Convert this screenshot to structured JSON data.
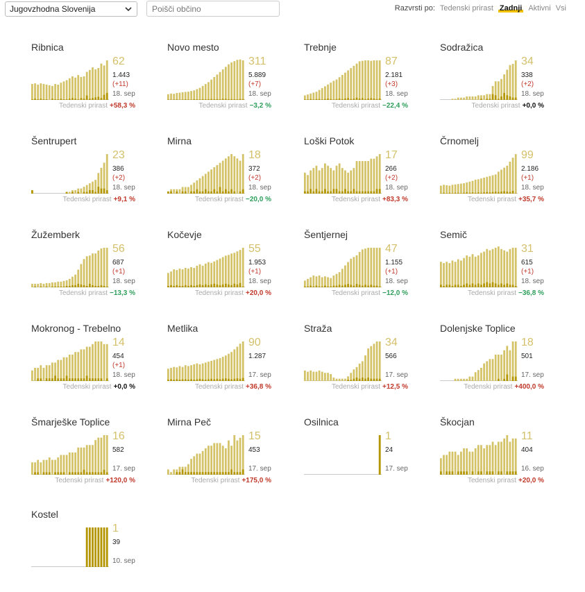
{
  "colors": {
    "bar_light": "#d4c267",
    "bar_dark": "#b39600",
    "baseline": "#c9c9c9",
    "total_text": "#d4c06a",
    "delta_text": "#c0392b",
    "growth_pos": "#c0392b",
    "growth_neg": "#2e9e5b",
    "growth_zero": "#111111",
    "sort_active_underline": "#f2c200"
  },
  "toolbar": {
    "region_value": "Jugovzhodna Slovenija",
    "search_placeholder": "Poišči občino",
    "sort_label": "Razvrsti po:",
    "sort_options": [
      "Tedenski prirast",
      "Zadnji",
      "Aktivni",
      "Vsi"
    ],
    "sort_active": "Zadnji"
  },
  "growth_label": "Tedenski prirast",
  "chart_data": [
    {
      "type": "bar",
      "title": "Ribnica",
      "total": "62",
      "cumulative": "1.443",
      "delta": "(+11)",
      "date": "18. sep",
      "growth": "+58,3 %",
      "growth_sign": "pos",
      "ymax": 62,
      "values": [
        25,
        26,
        24,
        26,
        25,
        24,
        23,
        22,
        25,
        24,
        27,
        29,
        31,
        34,
        37,
        35,
        39,
        36,
        37,
        44,
        47,
        51,
        48,
        50,
        57,
        54,
        62
      ],
      "daily": [
        1,
        2,
        1,
        2,
        1,
        1,
        0,
        2,
        1,
        1,
        2,
        1,
        1,
        2,
        3,
        2,
        1,
        3,
        2,
        7,
        2,
        3,
        4,
        5,
        3,
        8,
        11
      ]
    },
    {
      "type": "bar",
      "title": "Novo mesto",
      "total": "311",
      "cumulative": "5.889",
      "delta": "(+7)",
      "date": "18. sep",
      "growth": "−3,2 %",
      "growth_sign": "neg",
      "ymax": 311,
      "values": [
        45,
        50,
        48,
        55,
        57,
        60,
        63,
        65,
        70,
        75,
        85,
        95,
        110,
        125,
        140,
        160,
        180,
        200,
        220,
        240,
        260,
        280,
        295,
        305,
        315,
        318,
        311
      ],
      "daily": [
        3,
        2,
        3,
        4,
        2,
        3,
        5,
        4,
        3,
        6,
        5,
        4,
        7,
        5,
        6,
        8,
        6,
        7,
        5,
        9,
        8,
        6,
        7,
        6,
        5,
        8,
        7
      ]
    },
    {
      "type": "bar",
      "title": "Trebnje",
      "total": "87",
      "cumulative": "2.181",
      "delta": "(+3)",
      "date": "18. sep",
      "growth": "−22,4 %",
      "growth_sign": "neg",
      "ymax": 87,
      "values": [
        10,
        12,
        14,
        16,
        18,
        22,
        26,
        30,
        34,
        38,
        42,
        45,
        50,
        55,
        60,
        65,
        70,
        75,
        80,
        85,
        86,
        87,
        87,
        86,
        87,
        87,
        87
      ],
      "daily": [
        1,
        1,
        2,
        1,
        2,
        2,
        1,
        2,
        3,
        2,
        1,
        2,
        3,
        2,
        3,
        4,
        2,
        3,
        5,
        3,
        4,
        2,
        3,
        4,
        3,
        2,
        3
      ]
    },
    {
      "type": "bar",
      "title": "Sodražica",
      "total": "34",
      "cumulative": "338",
      "delta": "(+2)",
      "date": "18. sep",
      "growth": "+0,0 %",
      "growth_sign": "zero",
      "ymax": 34,
      "values": [
        0,
        0,
        0,
        0,
        1,
        1,
        2,
        2,
        2,
        3,
        3,
        3,
        3,
        4,
        4,
        4,
        5,
        5,
        12,
        16,
        16,
        18,
        22,
        26,
        30,
        31,
        34
      ],
      "daily": [
        0,
        0,
        0,
        0,
        0,
        0,
        0,
        0,
        0,
        0,
        0,
        0,
        0,
        0,
        1,
        0,
        1,
        1,
        5,
        4,
        1,
        3,
        6,
        4,
        3,
        2,
        2
      ]
    },
    {
      "type": "bar",
      "title": "Šentrupert",
      "total": "23",
      "cumulative": "386",
      "delta": "(+2)",
      "date": "18. sep",
      "growth": "+9,1 %",
      "growth_sign": "pos",
      "ymax": 23,
      "values": [
        2,
        0,
        0,
        0,
        0,
        0,
        0,
        0,
        0,
        0,
        0,
        0,
        1,
        1,
        2,
        2,
        3,
        3,
        4,
        5,
        6,
        7,
        8,
        12,
        15,
        18,
        23
      ],
      "daily": [
        2,
        0,
        0,
        0,
        0,
        0,
        0,
        0,
        0,
        0,
        0,
        0,
        1,
        0,
        1,
        0,
        1,
        0,
        1,
        1,
        2,
        2,
        1,
        4,
        3,
        3,
        2
      ]
    },
    {
      "type": "bar",
      "title": "Mirna",
      "total": "18",
      "cumulative": "372",
      "delta": "(+2)",
      "date": "18. sep",
      "growth": "−20,0 %",
      "growth_sign": "neg",
      "ymax": 18,
      "values": [
        1,
        2,
        2,
        2,
        2,
        3,
        3,
        3,
        4,
        5,
        6,
        7,
        8,
        9,
        10,
        11,
        12,
        13,
        14,
        15,
        16,
        17,
        18,
        17,
        16,
        15,
        18
      ],
      "daily": [
        1,
        1,
        0,
        1,
        0,
        1,
        1,
        0,
        1,
        1,
        2,
        1,
        1,
        2,
        1,
        1,
        2,
        1,
        3,
        1,
        2,
        1,
        2,
        1,
        0,
        1,
        2
      ]
    },
    {
      "type": "bar",
      "title": "Loški Potok",
      "total": "17",
      "cumulative": "266",
      "delta": "(+2)",
      "date": "18. sep",
      "growth": "+83,3 %",
      "growth_sign": "pos",
      "ymax": 17,
      "values": [
        9,
        8,
        10,
        11,
        12,
        10,
        11,
        13,
        12,
        11,
        10,
        12,
        13,
        11,
        10,
        9,
        10,
        11,
        14,
        14,
        14,
        14,
        14,
        15,
        15,
        16,
        17
      ],
      "daily": [
        1,
        1,
        2,
        1,
        2,
        1,
        1,
        2,
        1,
        1,
        2,
        2,
        1,
        1,
        2,
        1,
        1,
        2,
        1,
        1,
        1,
        1,
        1,
        1,
        1,
        2,
        2
      ]
    },
    {
      "type": "bar",
      "title": "Črnomelj",
      "total": "99",
      "cumulative": "2.186",
      "delta": "(+1)",
      "date": "18. sep",
      "growth": "+35,7 %",
      "growth_sign": "pos",
      "ymax": 99,
      "values": [
        20,
        22,
        21,
        20,
        22,
        23,
        24,
        25,
        26,
        28,
        30,
        32,
        35,
        36,
        38,
        40,
        42,
        44,
        46,
        48,
        55,
        60,
        65,
        70,
        80,
        90,
        99
      ],
      "daily": [
        1,
        2,
        1,
        2,
        1,
        2,
        2,
        1,
        2,
        3,
        2,
        3,
        2,
        3,
        2,
        3,
        4,
        3,
        4,
        5,
        4,
        5,
        6,
        5,
        4,
        7,
        1
      ]
    },
    {
      "type": "bar",
      "title": "Žužemberk",
      "total": "56",
      "cumulative": "687",
      "delta": "(+1)",
      "date": "18. sep",
      "growth": "−13,3 %",
      "growth_sign": "neg",
      "ymax": 56,
      "values": [
        5,
        5,
        5,
        6,
        5,
        6,
        6,
        7,
        7,
        8,
        8,
        9,
        10,
        12,
        15,
        18,
        25,
        33,
        40,
        44,
        45,
        48,
        48,
        52,
        55,
        56,
        56
      ],
      "daily": [
        0,
        1,
        0,
        1,
        0,
        1,
        0,
        1,
        1,
        1,
        1,
        1,
        2,
        2,
        3,
        3,
        5,
        4,
        3,
        2,
        5,
        3,
        2,
        2,
        3,
        2,
        1
      ]
    },
    {
      "type": "bar",
      "title": "Kočevje",
      "total": "55",
      "cumulative": "1.953",
      "delta": "(+1)",
      "date": "18. sep",
      "growth": "+20,0 %",
      "growth_sign": "pos",
      "ymax": 55,
      "values": [
        20,
        22,
        25,
        24,
        26,
        25,
        27,
        26,
        28,
        27,
        30,
        32,
        30,
        33,
        35,
        34,
        36,
        38,
        40,
        42,
        44,
        45,
        47,
        48,
        50,
        52,
        55
      ],
      "daily": [
        2,
        3,
        2,
        3,
        2,
        2,
        3,
        2,
        3,
        2,
        3,
        4,
        3,
        4,
        3,
        4,
        5,
        4,
        3,
        4,
        5,
        4,
        3,
        5,
        4,
        6,
        1
      ]
    },
    {
      "type": "bar",
      "title": "Šentjernej",
      "total": "47",
      "cumulative": "1.155",
      "delta": "(+1)",
      "date": "18. sep",
      "growth": "−12,0 %",
      "growth_sign": "neg",
      "ymax": 47,
      "values": [
        8,
        10,
        12,
        14,
        13,
        14,
        12,
        13,
        12,
        11,
        14,
        16,
        18,
        22,
        26,
        30,
        34,
        36,
        38,
        42,
        45,
        46,
        47,
        47,
        47,
        47,
        47
      ],
      "daily": [
        1,
        1,
        2,
        1,
        2,
        1,
        1,
        2,
        1,
        1,
        2,
        2,
        3,
        2,
        3,
        4,
        3,
        2,
        4,
        3,
        2,
        3,
        2,
        3,
        2,
        2,
        1
      ]
    },
    {
      "type": "bar",
      "title": "Semič",
      "total": "31",
      "cumulative": "615",
      "delta": "(+1)",
      "date": "18. sep",
      "growth": "−36,8 %",
      "growth_sign": "neg",
      "ymax": 31,
      "values": [
        20,
        19,
        20,
        19,
        21,
        20,
        22,
        21,
        23,
        25,
        24,
        26,
        24,
        25,
        27,
        28,
        30,
        29,
        30,
        31,
        32,
        30,
        29,
        28,
        30,
        31,
        31
      ],
      "daily": [
        2,
        1,
        2,
        2,
        1,
        2,
        2,
        1,
        2,
        3,
        2,
        3,
        2,
        3,
        2,
        3,
        4,
        3,
        4,
        3,
        2,
        3,
        2,
        3,
        2,
        2,
        1
      ]
    },
    {
      "type": "bar",
      "title": "Mokronog - Trebelno",
      "total": "14",
      "cumulative": "454",
      "delta": "(+1)",
      "date": "18. sep",
      "growth": "+0,0 %",
      "growth_sign": "zero",
      "ymax": 15,
      "values": [
        4,
        5,
        5,
        6,
        5,
        6,
        6,
        7,
        7,
        8,
        8,
        9,
        9,
        10,
        10,
        11,
        11,
        12,
        12,
        13,
        13,
        14,
        15,
        15,
        15,
        14,
        14
      ],
      "daily": [
        0,
        0,
        1,
        1,
        0,
        1,
        1,
        1,
        2,
        1,
        1,
        1,
        2,
        1,
        1,
        1,
        1,
        1,
        1,
        2,
        1,
        1,
        1,
        1,
        1,
        0,
        1
      ]
    },
    {
      "type": "bar",
      "title": "Metlika",
      "total": "90",
      "cumulative": "1.287",
      "delta": "",
      "date": "17. sep",
      "growth": "+36,8 %",
      "growth_sign": "pos",
      "ymax": 90,
      "values": [
        28,
        30,
        32,
        31,
        34,
        32,
        36,
        34,
        36,
        38,
        40,
        38,
        40,
        42,
        44,
        46,
        48,
        50,
        52,
        55,
        58,
        62,
        66,
        72,
        78,
        85,
        90
      ],
      "daily": [
        3,
        4,
        3,
        4,
        3,
        4,
        4,
        3,
        4,
        3,
        4,
        5,
        4,
        3,
        4,
        5,
        4,
        5,
        4,
        5,
        6,
        5,
        4,
        5,
        6,
        5,
        7
      ]
    },
    {
      "type": "bar",
      "title": "Straža",
      "total": "34",
      "cumulative": "566",
      "delta": "",
      "date": "17. sep",
      "growth": "+12,5 %",
      "growth_sign": "pos",
      "ymax": 34,
      "values": [
        9,
        8,
        9,
        8,
        8,
        9,
        8,
        7,
        7,
        6,
        3,
        2,
        2,
        2,
        2,
        4,
        7,
        10,
        12,
        15,
        17,
        22,
        28,
        30,
        32,
        34,
        34
      ],
      "daily": [
        0,
        0,
        0,
        0,
        0,
        0,
        0,
        0,
        0,
        0,
        0,
        0,
        0,
        0,
        0,
        1,
        1,
        2,
        3,
        2,
        3,
        2,
        3,
        2,
        2,
        2,
        2
      ]
    },
    {
      "type": "bar",
      "title": "Dolenjske Toplice",
      "total": "18",
      "cumulative": "501",
      "delta": "",
      "date": "17. sep",
      "growth": "+400,0 %",
      "growth_sign": "pos",
      "ymax": 18,
      "values": [
        0,
        0,
        0,
        0,
        0,
        1,
        1,
        1,
        1,
        1,
        2,
        2,
        4,
        5,
        6,
        8,
        9,
        10,
        10,
        12,
        12,
        12,
        14,
        16,
        14,
        18,
        18
      ],
      "daily": [
        0,
        0,
        0,
        0,
        0,
        0,
        0,
        0,
        0,
        0,
        0,
        0,
        0,
        0,
        0,
        0,
        0,
        0,
        0,
        0,
        1,
        0,
        1,
        3,
        0,
        2,
        2
      ]
    },
    {
      "type": "bar",
      "title": "Šmarješke Toplice",
      "total": "16",
      "cumulative": "582",
      "delta": "",
      "date": "17. sep",
      "growth": "+120,0 %",
      "growth_sign": "pos",
      "ymax": 16,
      "values": [
        5,
        5,
        6,
        5,
        6,
        6,
        7,
        6,
        6,
        7,
        8,
        8,
        8,
        9,
        9,
        9,
        11,
        11,
        11,
        12,
        12,
        12,
        14,
        15,
        15,
        16,
        16
      ],
      "daily": [
        0,
        1,
        1,
        0,
        1,
        1,
        1,
        0,
        1,
        1,
        1,
        1,
        0,
        1,
        1,
        1,
        1,
        1,
        2,
        1,
        1,
        1,
        1,
        1,
        1,
        2,
        1
      ]
    },
    {
      "type": "bar",
      "title": "Mirna Peč",
      "total": "15",
      "cumulative": "453",
      "delta": "",
      "date": "17. sep",
      "growth": "+175,0 %",
      "growth_sign": "pos",
      "ymax": 15,
      "values": [
        2,
        1,
        2,
        2,
        3,
        3,
        3,
        4,
        6,
        7,
        8,
        8,
        9,
        10,
        11,
        11,
        12,
        12,
        12,
        11,
        10,
        13,
        11,
        15,
        13,
        14,
        15
      ],
      "daily": [
        0,
        0,
        0,
        1,
        1,
        2,
        1,
        1,
        1,
        1,
        1,
        1,
        1,
        1,
        1,
        1,
        1,
        1,
        1,
        1,
        1,
        1,
        2,
        1,
        1,
        1,
        2
      ]
    },
    {
      "type": "bar",
      "title": "Osilnica",
      "total": "1",
      "cumulative": "24",
      "delta": "",
      "date": "17. sep",
      "growth": "",
      "growth_sign": "zero",
      "ymax": 1,
      "values": [
        0,
        0,
        0,
        0,
        0,
        0,
        0,
        0,
        0,
        0,
        0,
        0,
        0,
        0,
        0,
        0,
        0,
        0,
        0,
        0,
        0,
        0,
        0,
        0,
        0,
        0,
        1
      ],
      "daily": [
        0,
        0,
        0,
        0,
        0,
        0,
        0,
        0,
        0,
        0,
        0,
        0,
        0,
        0,
        0,
        0,
        0,
        0,
        0,
        0,
        0,
        0,
        0,
        0,
        0,
        0,
        1
      ]
    },
    {
      "type": "bar",
      "title": "Škocjan",
      "total": "11",
      "cumulative": "404",
      "delta": "",
      "date": "16. sep",
      "growth": "+20,0 %",
      "growth_sign": "pos",
      "ymax": 12,
      "values": [
        5,
        6,
        6,
        7,
        7,
        7,
        6,
        7,
        8,
        8,
        7,
        7,
        8,
        9,
        9,
        8,
        9,
        9,
        10,
        9,
        10,
        10,
        11,
        12,
        10,
        11,
        11
      ],
      "daily": [
        1,
        0,
        1,
        1,
        1,
        0,
        1,
        1,
        1,
        1,
        0,
        1,
        0,
        1,
        1,
        0,
        1,
        1,
        1,
        0,
        1,
        1,
        0,
        1,
        1,
        1,
        1
      ]
    },
    {
      "type": "bar",
      "title": "Kostel",
      "total": "1",
      "cumulative": "39",
      "delta": "",
      "date": "10. sep",
      "growth": "",
      "growth_sign": "zero",
      "ymax": 1,
      "values": [
        0,
        0,
        0,
        0,
        0,
        0,
        0,
        0,
        0,
        0,
        0,
        0,
        0,
        0,
        0,
        0,
        0,
        0,
        0,
        1,
        1,
        1,
        1,
        1,
        1,
        1,
        1
      ],
      "daily": [
        0,
        0,
        0,
        0,
        0,
        0,
        0,
        0,
        0,
        0,
        0,
        0,
        0,
        0,
        0,
        0,
        0,
        0,
        0,
        1,
        1,
        1,
        1,
        1,
        1,
        1,
        1
      ]
    }
  ]
}
